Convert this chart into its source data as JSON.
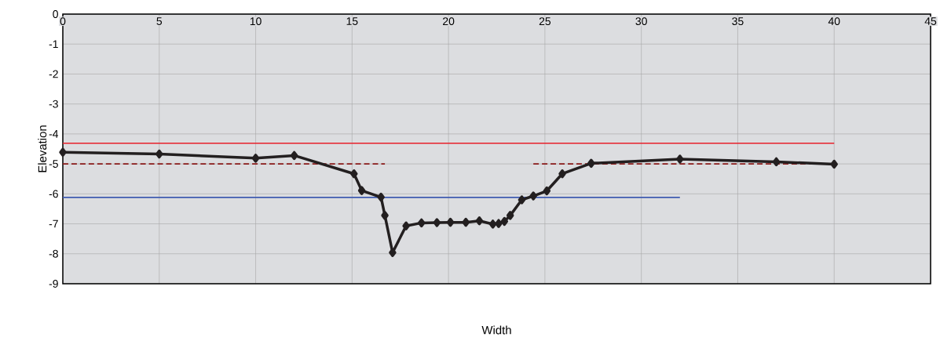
{
  "chart_data": {
    "type": "line",
    "xlabel": "Width",
    "ylabel": "Elevation",
    "xlim": [
      0,
      45
    ],
    "ylim": [
      -9,
      0
    ],
    "xticks": [
      0,
      5,
      10,
      15,
      20,
      25,
      30,
      35,
      40,
      45
    ],
    "yticks": [
      0,
      -1,
      -2,
      -3,
      -4,
      -5,
      -6,
      -7,
      -8,
      -9
    ],
    "grid": true,
    "series": [
      {
        "color": "#e8202a",
        "marker": "none",
        "line_style": "solid",
        "x": [
          0,
          40
        ],
        "values": [
          -4.31,
          -4.31
        ]
      },
      {
        "color": "#8b1a1a",
        "marker": "none",
        "line_style": "dashed",
        "x": [
          0,
          16.7,
          20,
          24.4,
          40
        ],
        "values": [
          -5.0,
          -5.0,
          null,
          -5.0,
          -5.0
        ]
      },
      {
        "color": "#3f5bb0",
        "marker": "none",
        "line_style": "solid",
        "x": [
          0,
          32
        ],
        "values": [
          -6.12,
          -6.12
        ]
      },
      {
        "color": "#231f20",
        "marker": "diamond",
        "line_style": "solid",
        "x": [
          0,
          5,
          10,
          12,
          15.1,
          15.5,
          16.5,
          16.7,
          17.1,
          17.8,
          18.6,
          19.4,
          20.1,
          20.9,
          21.6,
          22.3,
          22.6,
          22.9,
          23.2,
          23.8,
          24.4,
          25.1,
          25.9,
          27.4,
          32,
          37,
          40
        ],
        "values": [
          -4.61,
          -4.67,
          -4.81,
          -4.72,
          -5.33,
          -5.89,
          -6.11,
          -6.72,
          -7.96,
          -7.07,
          -6.97,
          -6.96,
          -6.95,
          -6.95,
          -6.9,
          -7.01,
          -6.99,
          -6.92,
          -6.72,
          -6.2,
          -6.07,
          -5.9,
          -5.33,
          -4.98,
          -4.84,
          -4.93,
          -5.01
        ]
      }
    ]
  }
}
